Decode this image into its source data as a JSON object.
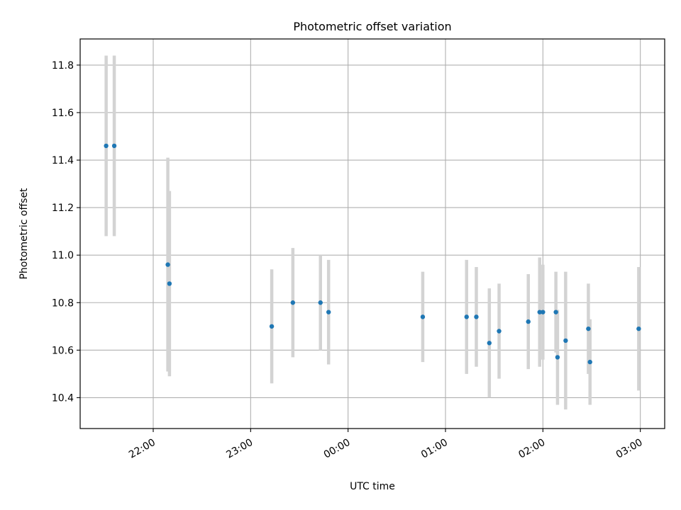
{
  "chart_data": {
    "type": "scatter",
    "title": "Photometric offset variation",
    "xlabel": "UTC time",
    "ylabel": "Photometric offset",
    "grid": true,
    "xlim": [
      "21:15",
      "03:15"
    ],
    "ylim": [
      10.27,
      11.91
    ],
    "x_ticks": [
      "22:00",
      "23:00",
      "00:00",
      "01:00",
      "02:00",
      "03:00"
    ],
    "y_ticks": [
      "10.4",
      "10.6",
      "10.8",
      "11.0",
      "11.2",
      "11.4",
      "11.6",
      "11.8"
    ],
    "points": [
      {
        "time": "21:31",
        "y": 11.46,
        "err": 0.38
      },
      {
        "time": "21:36",
        "y": 11.46,
        "err": 0.38
      },
      {
        "time": "22:09",
        "y": 10.96,
        "err": 0.45
      },
      {
        "time": "22:10",
        "y": 10.88,
        "err": 0.39
      },
      {
        "time": "23:13",
        "y": 10.7,
        "err": 0.24
      },
      {
        "time": "23:26",
        "y": 10.8,
        "err": 0.23
      },
      {
        "time": "23:43",
        "y": 10.8,
        "err": 0.2
      },
      {
        "time": "23:48",
        "y": 10.76,
        "err": 0.22
      },
      {
        "time": "00:46",
        "y": 10.74,
        "err": 0.19
      },
      {
        "time": "01:13",
        "y": 10.74,
        "err": 0.24
      },
      {
        "time": "01:19",
        "y": 10.74,
        "err": 0.21
      },
      {
        "time": "01:27",
        "y": 10.63,
        "err": 0.23
      },
      {
        "time": "01:33",
        "y": 10.68,
        "err": 0.2
      },
      {
        "time": "01:51",
        "y": 10.72,
        "err": 0.2
      },
      {
        "time": "01:58",
        "y": 10.76,
        "err": 0.23
      },
      {
        "time": "02:00",
        "y": 10.76,
        "err": 0.2
      },
      {
        "time": "02:08",
        "y": 10.76,
        "err": 0.17
      },
      {
        "time": "02:09",
        "y": 10.57,
        "err": 0.2
      },
      {
        "time": "02:14",
        "y": 10.64,
        "err": 0.29
      },
      {
        "time": "02:28",
        "y": 10.69,
        "err": 0.19
      },
      {
        "time": "02:29",
        "y": 10.55,
        "err": 0.18
      },
      {
        "time": "02:59",
        "y": 10.69,
        "err": 0.26
      }
    ],
    "colors": {
      "point": "#1f77b4",
      "errorbar": "#d3d3d3",
      "grid": "#b0b0b0"
    }
  }
}
